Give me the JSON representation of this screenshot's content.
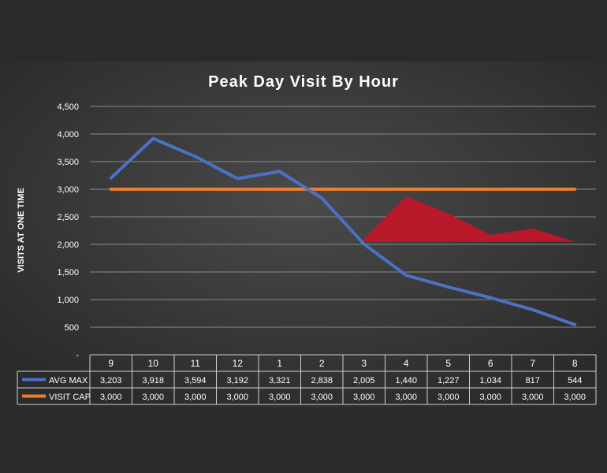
{
  "chart_data": {
    "type": "line",
    "title": "Peak Day Visit By Hour",
    "ylabel": "VISITS AT ONE TIME",
    "xlabel": "",
    "ylim": [
      0,
      4500
    ],
    "yticks": [
      0,
      500,
      1000,
      1500,
      2000,
      2500,
      3000,
      3500,
      4000,
      4500
    ],
    "ytick_labels": [
      "-",
      "500",
      "1,000",
      "1,500",
      "2,000",
      "2,500",
      "3,000",
      "3,500",
      "4,000",
      "4,500"
    ],
    "categories": [
      "9",
      "10",
      "11",
      "12",
      "1",
      "2",
      "3",
      "4",
      "5",
      "6",
      "7",
      "8"
    ],
    "grid": true,
    "legend": "data-table",
    "series": [
      {
        "name": "AVG MAX",
        "color": "#4a72c4",
        "values": [
          3203,
          3918,
          3594,
          3192,
          3321,
          2838,
          2005,
          1440,
          1227,
          1034,
          817,
          544
        ],
        "labels": [
          "3,203",
          "3,918",
          "3,594",
          "3,192",
          "3,321",
          "2,838",
          "2,005",
          "1,440",
          "1,227",
          "1,034",
          "817",
          "544"
        ]
      },
      {
        "name": "VISIT CAP",
        "color": "#ed7d31",
        "values": [
          3000,
          3000,
          3000,
          3000,
          3000,
          3000,
          3000,
          3000,
          3000,
          3000,
          3000,
          3000
        ],
        "labels": [
          "3,000",
          "3,000",
          "3,000",
          "3,000",
          "3,000",
          "3,000",
          "3,000",
          "3,000",
          "3,000",
          "3,000",
          "3,000",
          "3,000"
        ]
      }
    ],
    "annotation_shape": {
      "color": "#b8182a",
      "points": [
        {
          "x": "3",
          "y": 2100
        },
        {
          "x": "4",
          "y": 2870
        },
        {
          "x": "5",
          "y": 2560
        },
        {
          "x": "6",
          "y": 2170
        },
        {
          "x": "7",
          "y": 2290
        },
        {
          "x": "8",
          "y": 2050
        },
        {
          "x": "3",
          "y": 2050
        }
      ]
    },
    "background_color": "#3a3a3a",
    "text_color": "#ffffff",
    "grid_color": "#8a8a8a"
  }
}
